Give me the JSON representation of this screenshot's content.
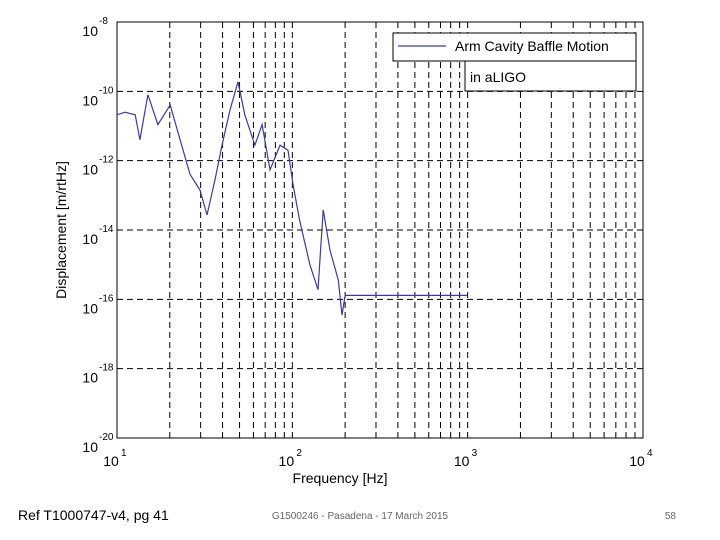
{
  "chart_data": {
    "type": "line",
    "xlabel": "Frequency [Hz]",
    "ylabel": "Displacement [m/rtHz]",
    "annotation": "in aLIGO",
    "log_x": true,
    "log_y": true,
    "grid": true,
    "legend": "upper right",
    "xlim": [
      10,
      10000
    ],
    "ylim": [
      1e-20,
      1e-08
    ],
    "xticks": [
      {
        "value": 10,
        "label": "10",
        "exponent": "1"
      },
      {
        "value": 100,
        "label": "10",
        "exponent": "2"
      },
      {
        "value": 1000,
        "label": "10",
        "exponent": "3"
      },
      {
        "value": 10000,
        "label": "10",
        "exponent": "4"
      }
    ],
    "xminorticks": [
      20,
      30,
      40,
      50,
      60,
      70,
      80,
      90,
      200,
      300,
      400,
      500,
      600,
      700,
      800,
      900,
      2000,
      3000,
      4000,
      5000,
      6000,
      7000,
      8000,
      9000
    ],
    "yticks": [
      {
        "value": 1e-20,
        "label": "10",
        "exponent": "-20"
      },
      {
        "value": 1e-18,
        "label": "10",
        "exponent": "-18"
      },
      {
        "value": 1e-16,
        "label": "10",
        "exponent": "-16"
      },
      {
        "value": 1e-14,
        "label": "10",
        "exponent": "-14"
      },
      {
        "value": 1e-12,
        "label": "10",
        "exponent": "-12"
      },
      {
        "value": 1e-10,
        "label": "10",
        "exponent": "-10"
      },
      {
        "value": 1e-08,
        "label": "10",
        "exponent": "-8"
      }
    ],
    "x": [
      10,
      11.1,
      12.7,
      13.5,
      15.0,
      17.1,
      20.1,
      22.9,
      26.1,
      29.8,
      32.6,
      36.2,
      39.7,
      44.1,
      49.0,
      53.6,
      61.2,
      67.2,
      74.6,
      85.2,
      94.5,
      101,
      110,
      126,
      140,
      150,
      164,
      183,
      192,
      200,
      1000
    ],
    "series": [
      {
        "name": "Arm Cavity Baffle Motion",
        "color": "#3a3aa8",
        "values": [
          2.1e-11,
          2.5e-11,
          2.1e-11,
          4e-12,
          8e-11,
          1.1e-11,
          4e-11,
          4e-12,
          4e-13,
          1.4e-13,
          2.7e-14,
          2.8e-13,
          2.8e-12,
          2.9e-11,
          1.9e-10,
          2.1e-11,
          2.8e-12,
          1.1e-11,
          5.4e-13,
          2.8e-12,
          2e-12,
          2e-13,
          1.9e-14,
          1e-15,
          1.9e-16,
          3.8e-14,
          2.6e-15,
          3.6e-16,
          3.5e-17,
          1.3e-16,
          1.3e-16
        ]
      }
    ]
  },
  "footer": {
    "reference": "Ref T1000747-v4, pg 41",
    "center": "G1500246 - Pasadena - 17 March 2015",
    "page": "58"
  }
}
